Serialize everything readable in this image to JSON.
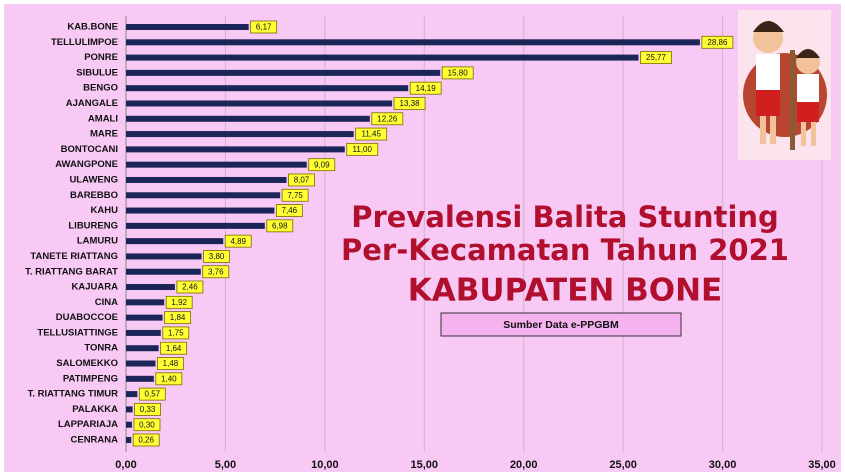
{
  "chart_data": {
    "type": "hbar",
    "title_lines": [
      "Prevalensi Balita Stunting",
      "Per-Kecamatan Tahun 2021",
      "KABUPATEN BONE"
    ],
    "source": "Sumber Data e-PPGBM",
    "categories": [
      "KAB.BONE",
      "TELLULIMPOE",
      "PONRE",
      "SIBULUE",
      "BENGO",
      "AJANGALE",
      "AMALI",
      "MARE",
      "BONTOCANI",
      "AWANGPONE",
      "ULAWENG",
      "BAREBBO",
      "KAHU",
      "LIBURENG",
      "LAMURU",
      "TANETE RIATTANG",
      "T. RIATTANG BARAT",
      "KAJUARA",
      "CINA",
      "DUABOCCOE",
      "TELLUSIATTINGE",
      "TONRA",
      "SALOMEKKO",
      "PATIMPENG",
      "T. RIATTANG TIMUR",
      "PALAKKA",
      "LAPPARIAJA",
      "CENRANA"
    ],
    "values": [
      6.17,
      28.86,
      25.77,
      15.8,
      14.19,
      13.38,
      12.26,
      11.45,
      11.0,
      9.09,
      8.07,
      7.75,
      7.46,
      6.98,
      4.89,
      3.8,
      3.76,
      2.46,
      1.92,
      1.84,
      1.75,
      1.64,
      1.48,
      1.4,
      0.57,
      0.33,
      0.3,
      0.26
    ],
    "value_labels": [
      "6,17",
      "28,86",
      "25,77",
      "15,80",
      "14,19",
      "13,38",
      "12,26",
      "11,45",
      "11,00",
      "9,09",
      "8,07",
      "7,75",
      "7,46",
      "6,98",
      "4,89",
      "3,80",
      "3,76",
      "2,46",
      "1,92",
      "1,84",
      "1,75",
      "1,64",
      "1,48",
      "1,40",
      "0,57",
      "0,33",
      "0,30",
      "0,26"
    ],
    "color": "#1c2558",
    "xlim": [
      0,
      35
    ],
    "xticks": [
      {
        "value": 0,
        "label": "0,00"
      },
      {
        "value": 5,
        "label": "5,00"
      },
      {
        "value": 10,
        "label": "10,00"
      },
      {
        "value": 15,
        "label": "15,00"
      },
      {
        "value": 20,
        "label": "20,00"
      },
      {
        "value": 25,
        "label": "25,00"
      },
      {
        "value": 30,
        "label": "30,00"
      },
      {
        "value": 35,
        "label": "35,00"
      }
    ],
    "grid": true
  }
}
